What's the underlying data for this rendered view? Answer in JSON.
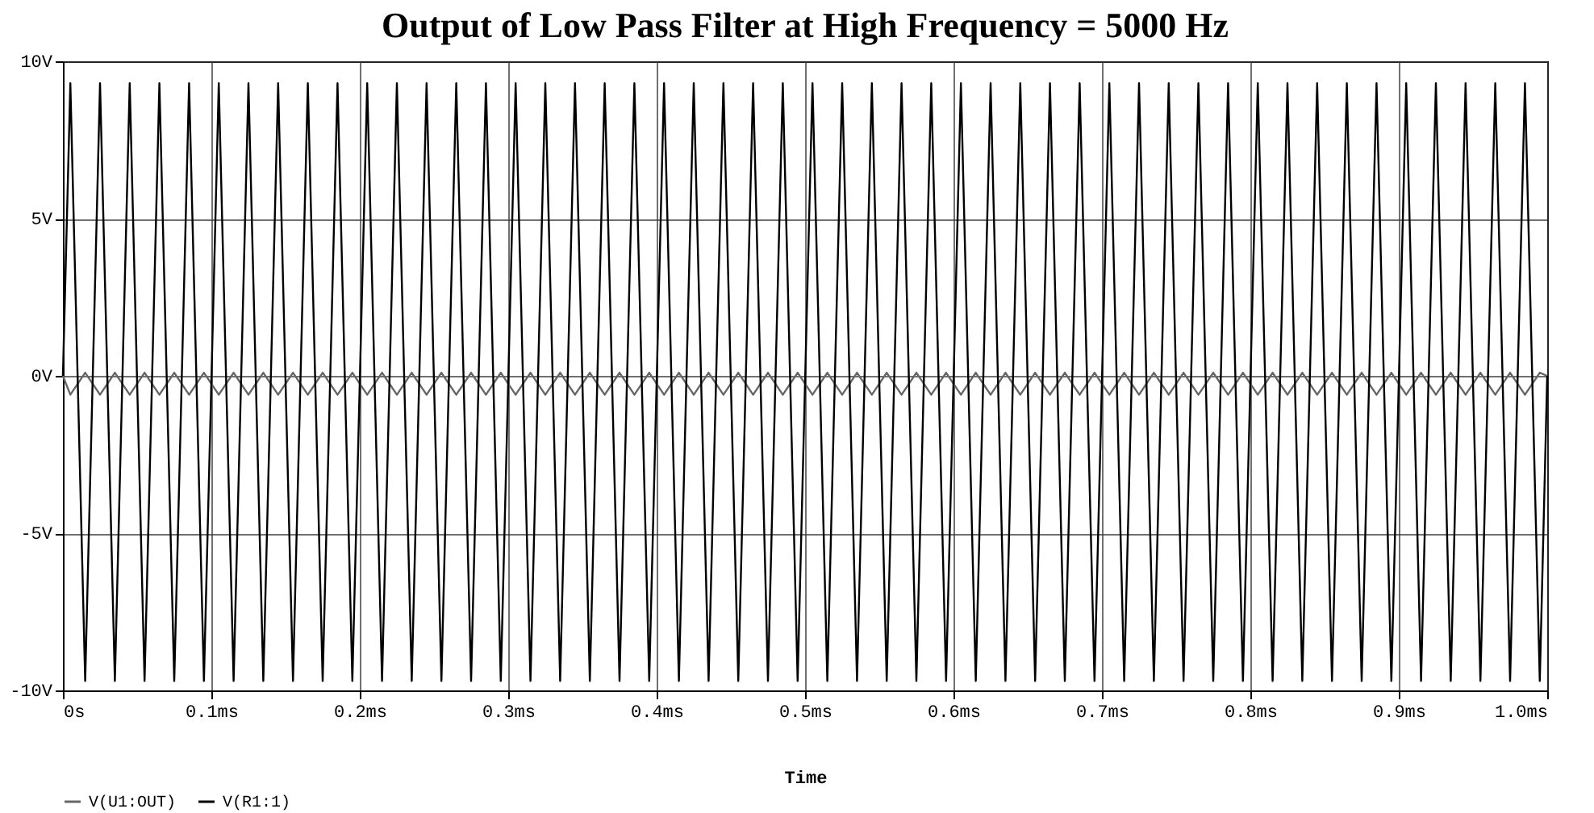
{
  "chart_data": {
    "type": "line",
    "title": "Output of Low Pass Filter at High Frequency = 5000 Hz",
    "xlabel": "Time",
    "x": [
      0,
      0.005,
      0.015,
      0.025,
      0.035,
      0.045,
      0.055,
      0.065,
      0.075,
      0.085,
      0.095,
      0.105,
      0.115,
      0.125,
      0.135,
      0.145,
      0.155,
      0.165,
      0.175,
      0.185,
      0.195,
      0.205,
      0.215,
      0.225,
      0.235,
      0.245,
      0.255,
      0.265,
      0.275,
      0.285,
      0.295,
      0.305,
      0.315,
      0.325,
      0.335,
      0.345,
      0.355,
      0.365,
      0.375,
      0.385,
      0.395,
      0.405,
      0.415,
      0.425,
      0.435,
      0.445,
      0.455,
      0.465,
      0.475,
      0.485,
      0.495,
      0.505,
      0.515,
      0.525,
      0.535,
      0.545,
      0.555,
      0.565,
      0.575,
      0.585,
      0.595,
      0.605,
      0.615,
      0.625,
      0.635,
      0.645,
      0.655,
      0.665,
      0.675,
      0.685,
      0.695,
      0.705,
      0.715,
      0.725,
      0.735,
      0.745,
      0.755,
      0.765,
      0.775,
      0.785,
      0.795,
      0.805,
      0.815,
      0.825,
      0.835,
      0.845,
      0.855,
      0.865,
      0.875,
      0.885,
      0.895,
      0.905,
      0.915,
      0.925,
      0.935,
      0.945,
      0.955,
      0.965,
      0.975,
      0.985,
      0.995,
      1.0
    ],
    "series": [
      {
        "name": "V(U1:OUT)",
        "color": "#666666",
        "values": [
          0,
          -0.6,
          0.1,
          -0.6,
          0.1,
          -0.6,
          0.1,
          -0.6,
          0.1,
          -0.6,
          0.1,
          -0.6,
          0.1,
          -0.6,
          0.1,
          -0.6,
          0.1,
          -0.6,
          0.1,
          -0.6,
          0.1,
          -0.6,
          0.1,
          -0.6,
          0.1,
          -0.6,
          0.1,
          -0.6,
          0.1,
          -0.6,
          0.1,
          -0.6,
          0.1,
          -0.6,
          0.1,
          -0.6,
          0.1,
          -0.6,
          0.1,
          -0.6,
          0.1,
          -0.6,
          0.1,
          -0.6,
          0.1,
          -0.6,
          0.1,
          -0.6,
          0.1,
          -0.6,
          0.1,
          -0.6,
          0.1,
          -0.6,
          0.1,
          -0.6,
          0.1,
          -0.6,
          0.1,
          -0.6,
          0.1,
          -0.6,
          0.1,
          -0.6,
          0.1,
          -0.6,
          0.1,
          -0.6,
          0.1,
          -0.6,
          0.1,
          -0.6,
          0.1,
          -0.6,
          0.1,
          -0.6,
          0.1,
          -0.6,
          0.1,
          -0.6,
          0.1,
          -0.6,
          0.1,
          -0.6,
          0.1,
          -0.6,
          0.1,
          -0.6,
          0.1,
          -0.6,
          0.1,
          -0.6,
          0.1,
          -0.6,
          0.1,
          -0.6,
          0.1,
          -0.6,
          0.1,
          -0.6,
          0.1,
          0
        ]
      },
      {
        "name": "V(R1:1)",
        "color": "#000000",
        "values": [
          0,
          9.3,
          -9.7,
          9.3,
          -9.7,
          9.3,
          -9.7,
          9.3,
          -9.7,
          9.3,
          -9.7,
          9.3,
          -9.7,
          9.3,
          -9.7,
          9.3,
          -9.7,
          9.3,
          -9.7,
          9.3,
          -9.7,
          9.3,
          -9.7,
          9.3,
          -9.7,
          9.3,
          -9.7,
          9.3,
          -9.7,
          9.3,
          -9.7,
          9.3,
          -9.7,
          9.3,
          -9.7,
          9.3,
          -9.7,
          9.3,
          -9.7,
          9.3,
          -9.7,
          9.3,
          -9.7,
          9.3,
          -9.7,
          9.3,
          -9.7,
          9.3,
          -9.7,
          9.3,
          -9.7,
          9.3,
          -9.7,
          9.3,
          -9.7,
          9.3,
          -9.7,
          9.3,
          -9.7,
          9.3,
          -9.7,
          9.3,
          -9.7,
          9.3,
          -9.7,
          9.3,
          -9.7,
          9.3,
          -9.7,
          9.3,
          -9.7,
          9.3,
          -9.7,
          9.3,
          -9.7,
          9.3,
          -9.7,
          9.3,
          -9.7,
          9.3,
          -9.7,
          9.3,
          -9.7,
          9.3,
          -9.7,
          9.3,
          -9.7,
          9.3,
          -9.7,
          9.3,
          -9.7,
          9.3,
          -9.7,
          9.3,
          -9.7,
          9.3,
          -9.7,
          9.3,
          -9.7,
          9.3,
          -9.7,
          0
        ]
      }
    ],
    "xlim": [
      0,
      1.0
    ],
    "xticks": [
      {
        "value": 0,
        "label": "0s"
      },
      {
        "value": 0.1,
        "label": "0.1ms"
      },
      {
        "value": 0.2,
        "label": "0.2ms"
      },
      {
        "value": 0.3,
        "label": "0.3ms"
      },
      {
        "value": 0.4,
        "label": "0.4ms"
      },
      {
        "value": 0.5,
        "label": "0.5ms"
      },
      {
        "value": 0.6,
        "label": "0.6ms"
      },
      {
        "value": 0.7,
        "label": "0.7ms"
      },
      {
        "value": 0.8,
        "label": "0.8ms"
      },
      {
        "value": 0.9,
        "label": "0.9ms"
      },
      {
        "value": 1.0,
        "label": "1.0ms"
      }
    ],
    "ylim": [
      -10,
      10
    ],
    "yticks": [
      {
        "value": -10,
        "label": "-10V"
      },
      {
        "value": -5,
        "label": "-5V"
      },
      {
        "value": 0,
        "label": "0V"
      },
      {
        "value": 5,
        "label": "5V"
      },
      {
        "value": 10,
        "label": "10V"
      }
    ],
    "grid": true,
    "legend": "bottom left",
    "line_style": "solid"
  }
}
